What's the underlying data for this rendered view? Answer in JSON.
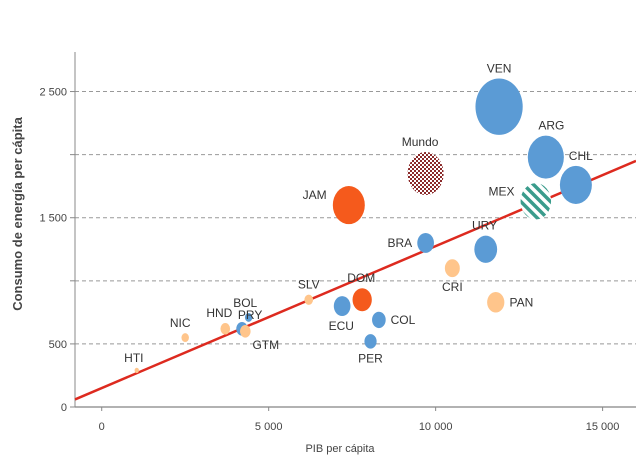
{
  "chart_data": {
    "type": "scatter",
    "subtype": "bubble",
    "xlabel": "PIB per cápita",
    "ylabel": "Consumo de energía per cápita",
    "xlim": [
      -800,
      16000
    ],
    "ylim": [
      0,
      2750
    ],
    "xticks": [
      {
        "value": 0,
        "label": "0"
      },
      {
        "value": 5000,
        "label": "5 000"
      },
      {
        "value": 10000,
        "label": "10 000"
      },
      {
        "value": 15000,
        "label": "15 000"
      }
    ],
    "yticks": [
      {
        "value": 0,
        "label": "0"
      },
      {
        "value": 500,
        "label": "500"
      },
      {
        "value": 1000,
        "label": ""
      },
      {
        "value": 1500,
        "label": "1 500"
      },
      {
        "value": 2000,
        "label": ""
      },
      {
        "value": 2500,
        "label": "2 500"
      }
    ],
    "grid": true,
    "colors": {
      "blue": "#5b9bd5",
      "orange": "#ffc58b",
      "red": "#f55a1c",
      "trend": "#dd2a1f",
      "world": "#8b2a2a",
      "mex": "#3a9c8c"
    },
    "trendline": {
      "x": [
        -800,
        16000
      ],
      "y": [
        60,
        1950
      ]
    },
    "points": [
      {
        "label": "VEN",
        "x": 11900,
        "y": 2380,
        "r": 12000,
        "color": "blue",
        "pattern": "solid",
        "label_dx": 0,
        "label_dy": -6.5
      },
      {
        "label": "ARG",
        "x": 13300,
        "y": 1980,
        "r": 7000,
        "color": "blue",
        "pattern": "solid",
        "label_dx": 0.3,
        "label_dy": -6.5
      },
      {
        "label": "CHL",
        "x": 14200,
        "y": 1760,
        "r": 5500,
        "color": "blue",
        "pattern": "solid",
        "label_dx": 0.3,
        "label_dy": -6.5
      },
      {
        "label": "MEX",
        "x": 13000,
        "y": 1630,
        "r": 5000,
        "color": "mex",
        "pattern": "stripes",
        "label_dx": -1.4,
        "label_dy": -1
      },
      {
        "label": "Mundo",
        "x": 9700,
        "y": 1850,
        "r": 7000,
        "color": "world",
        "pattern": "grid",
        "label_dx": -0.3,
        "label_dy": -6.5
      },
      {
        "label": "JAM",
        "x": 7400,
        "y": 1600,
        "r": 5500,
        "color": "red",
        "pattern": "solid",
        "label_dx": -1.3,
        "label_dy": -1
      },
      {
        "label": "URY",
        "x": 11500,
        "y": 1250,
        "r": 2800,
        "color": "blue",
        "pattern": "solid",
        "label_dx": -0.1,
        "label_dy": -6.5
      },
      {
        "label": "BRA",
        "x": 9700,
        "y": 1300,
        "r": 1500,
        "color": "blue",
        "pattern": "solid",
        "label_dx": -1.6,
        "label_dy": 0
      },
      {
        "label": "CRI",
        "x": 10500,
        "y": 1100,
        "r": 1200,
        "color": "orange",
        "pattern": "solid",
        "label_dx": 0,
        "label_dy": 2.5
      },
      {
        "label": "PAN",
        "x": 11800,
        "y": 830,
        "r": 1600,
        "color": "orange",
        "pattern": "solid",
        "label_dx": 1.8,
        "label_dy": 0
      },
      {
        "label": "DOM",
        "x": 7800,
        "y": 850,
        "r": 2000,
        "color": "red",
        "pattern": "solid",
        "label_dx": -0.1,
        "label_dy": -6.5
      },
      {
        "label": "ECU",
        "x": 7200,
        "y": 800,
        "r": 1500,
        "color": "blue",
        "pattern": "solid",
        "label_dx": -0.1,
        "label_dy": 2.6
      },
      {
        "label": "COL",
        "x": 8300,
        "y": 690,
        "r": 1000,
        "color": "blue",
        "pattern": "solid",
        "label_dx": 1.5,
        "label_dy": 0
      },
      {
        "label": "PER",
        "x": 8050,
        "y": 520,
        "r": 800,
        "color": "blue",
        "pattern": "solid",
        "label_dx": 0,
        "label_dy": 2.6
      },
      {
        "label": "SLV",
        "x": 6200,
        "y": 850,
        "r": 400,
        "color": "orange",
        "pattern": "solid",
        "label_dx": 0,
        "label_dy": -6.5
      },
      {
        "label": "BOL",
        "x": 4400,
        "y": 710,
        "r": 300,
        "color": "blue",
        "pattern": "solid",
        "label_dx": -0.9,
        "label_dy": -6.5
      },
      {
        "label": "PRY",
        "x": 4300,
        "y": 600,
        "r": 600,
        "color": "orange",
        "pattern": "solid",
        "label_dx": 0.9,
        "label_dy": -6.5
      },
      {
        "label": "GTM",
        "x": 4200,
        "y": 620,
        "r": 700,
        "color": "blue",
        "pattern": "solid",
        "label_dx": 1.2,
        "label_dy": 1.6
      },
      {
        "label": "HND",
        "x": 3700,
        "y": 620,
        "r": 500,
        "color": "orange",
        "pattern": "solid",
        "label_dx": -1.2,
        "label_dy": -6.5
      },
      {
        "label": "NIC",
        "x": 2500,
        "y": 550,
        "r": 300,
        "color": "orange",
        "pattern": "solid",
        "label_dx": -1.3,
        "label_dy": -6.5
      },
      {
        "label": "HTI",
        "x": 1050,
        "y": 290,
        "r": 60,
        "color": "orange",
        "pattern": "solid",
        "label_dx": -1.3,
        "label_dy": -6.5
      }
    ]
  }
}
